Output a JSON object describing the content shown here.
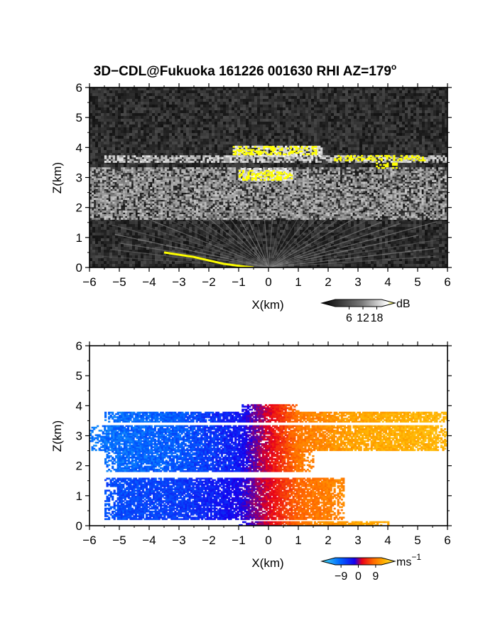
{
  "figure": {
    "title": "3D−CDL@Fukuoka 161226 001630 RHI AZ=179",
    "title_superscript": "o"
  },
  "chart_data": [
    {
      "type": "heatmap",
      "name": "snr",
      "xlabel": "X(km)",
      "ylabel": "Z(km)",
      "xlim": [
        -6,
        6
      ],
      "ylim": [
        0,
        6
      ],
      "xticks": [
        "−6",
        "−5",
        "−4",
        "−3",
        "−2",
        "−1",
        "0",
        "1",
        "2",
        "3",
        "4",
        "5",
        "6"
      ],
      "yticks": [
        "0",
        "1",
        "2",
        "3",
        "4",
        "5",
        "6"
      ],
      "colorbar": {
        "unit": "dB",
        "ticks": [
          "6",
          "12",
          "18"
        ],
        "tick_values": [
          6,
          12,
          18
        ],
        "range": [
          0,
          20
        ],
        "colors": [
          "#000000",
          "#ffffff",
          "#ffff00"
        ],
        "extend": "both"
      },
      "layers": [
        {
          "z_range": [
            3.5,
            3.7
          ],
          "x_range": [
            -5.5,
            6
          ],
          "level": "medium-high"
        },
        {
          "z_range": [
            1.6,
            3.3
          ],
          "x_range": [
            -6,
            6
          ],
          "level": "medium"
        },
        {
          "z_range": [
            3.7,
            4.05
          ],
          "x_range": [
            -1.2,
            1.8
          ],
          "level": "high"
        },
        {
          "z_range": [
            2.9,
            3.3
          ],
          "x_range": [
            -1.0,
            0.8
          ],
          "level": "high"
        }
      ],
      "ground_echo": {
        "x": [
          -3.5,
          -2.5,
          -1.5,
          -0.8,
          -0.5
        ],
        "z": [
          0.5,
          0.35,
          0.12,
          0.03,
          0.0
        ]
      }
    },
    {
      "type": "heatmap",
      "name": "doppler-velocity",
      "xlabel": "X(km)",
      "ylabel": "Z(km)",
      "xlim": [
        -6,
        6
      ],
      "ylim": [
        0,
        6
      ],
      "xticks": [
        "−6",
        "−5",
        "−4",
        "−3",
        "−2",
        "−1",
        "0",
        "1",
        "2",
        "3",
        "4",
        "5",
        "6"
      ],
      "yticks": [
        "0",
        "1",
        "2",
        "3",
        "4",
        "5",
        "6"
      ],
      "colorbar": {
        "unit": "ms",
        "unit_superscript": "−1",
        "ticks": [
          "−9",
          "0",
          "9"
        ],
        "tick_values": [
          -9,
          0,
          9
        ],
        "range": [
          -12,
          12
        ],
        "colors": [
          "#44ddee",
          "#0066ff",
          "#1500ee",
          "#e8001a",
          "#ff6600",
          "#ffb000",
          "#ffee44"
        ],
        "extend": "both"
      },
      "velocity_profile": {
        "x": [
          -6,
          -3,
          -1,
          0,
          1,
          3,
          6
        ],
        "v": [
          -8.5,
          -7.5,
          -5,
          0,
          5,
          7.5,
          8.5
        ]
      },
      "layers": [
        {
          "z_range": [
            2.5,
            3.3
          ],
          "x_range": [
            -6,
            6
          ]
        },
        {
          "z_range": [
            3.45,
            3.75
          ],
          "x_range": [
            -5.5,
            6
          ]
        },
        {
          "z_range": [
            3.7,
            4.0
          ],
          "x_range": [
            -0.9,
            1.0
          ]
        },
        {
          "z_range": [
            1.8,
            2.5
          ],
          "x_range": [
            -5.5,
            1.5
          ]
        },
        {
          "z_range": [
            0.2,
            1.6
          ],
          "x_range": [
            -5.5,
            2.5
          ]
        },
        {
          "z_range": [
            0.0,
            0.15
          ],
          "x_range": [
            -1.0,
            4.0
          ]
        }
      ]
    }
  ]
}
